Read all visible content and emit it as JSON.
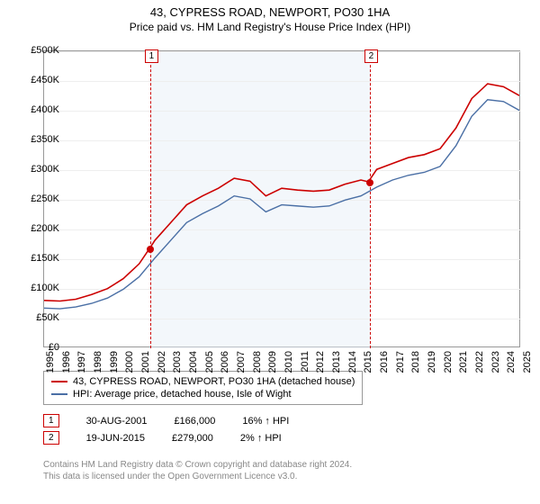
{
  "title": "43, CYPRESS ROAD, NEWPORT, PO30 1HA",
  "subtitle": "Price paid vs. HM Land Registry's House Price Index (HPI)",
  "chart": {
    "type": "line",
    "x_axis": {
      "min": 1995,
      "max": 2025,
      "tick_step": 1,
      "labels": [
        "1995",
        "1996",
        "1997",
        "1998",
        "1999",
        "2000",
        "2001",
        "2002",
        "2003",
        "2004",
        "2005",
        "2006",
        "2007",
        "2008",
        "2009",
        "2010",
        "2011",
        "2012",
        "2013",
        "2014",
        "2015",
        "2016",
        "2017",
        "2018",
        "2019",
        "2020",
        "2021",
        "2022",
        "2023",
        "2024",
        "2025"
      ]
    },
    "y_axis": {
      "min": 0,
      "max": 500,
      "tick_step": 50,
      "labels": [
        "£0",
        "£50K",
        "£100K",
        "£150K",
        "£200K",
        "£250K",
        "£300K",
        "£350K",
        "£400K",
        "£450K",
        "£500K"
      ]
    },
    "background_color": "#ffffff",
    "shade_color": "#e8f0f8",
    "grid_color": "#eeeeee",
    "border_color": "#999999",
    "shade_range": [
      2001.66,
      2015.47
    ],
    "series": [
      {
        "name": "property",
        "label": "43, CYPRESS ROAD, NEWPORT, PO30 1HA (detached house)",
        "color": "#cc0000",
        "line_width": 1.6,
        "data": [
          [
            1995,
            78
          ],
          [
            1996,
            77
          ],
          [
            1997,
            80
          ],
          [
            1998,
            88
          ],
          [
            1999,
            98
          ],
          [
            2000,
            115
          ],
          [
            2001,
            140
          ],
          [
            2001.66,
            166
          ],
          [
            2002,
            180
          ],
          [
            2003,
            210
          ],
          [
            2004,
            240
          ],
          [
            2005,
            255
          ],
          [
            2006,
            268
          ],
          [
            2007,
            285
          ],
          [
            2008,
            280
          ],
          [
            2009,
            255
          ],
          [
            2010,
            268
          ],
          [
            2011,
            265
          ],
          [
            2012,
            263
          ],
          [
            2013,
            265
          ],
          [
            2014,
            275
          ],
          [
            2015,
            282
          ],
          [
            2015.47,
            279
          ],
          [
            2016,
            300
          ],
          [
            2017,
            310
          ],
          [
            2018,
            320
          ],
          [
            2019,
            325
          ],
          [
            2020,
            335
          ],
          [
            2021,
            370
          ],
          [
            2022,
            420
          ],
          [
            2023,
            445
          ],
          [
            2024,
            440
          ],
          [
            2025,
            425
          ]
        ]
      },
      {
        "name": "hpi",
        "label": "HPI: Average price, detached house, Isle of Wight",
        "color": "#4a6fa5",
        "line_width": 1.4,
        "data": [
          [
            1995,
            65
          ],
          [
            1996,
            64
          ],
          [
            1997,
            67
          ],
          [
            1998,
            73
          ],
          [
            1999,
            82
          ],
          [
            2000,
            97
          ],
          [
            2001,
            118
          ],
          [
            2002,
            150
          ],
          [
            2003,
            180
          ],
          [
            2004,
            210
          ],
          [
            2005,
            225
          ],
          [
            2006,
            238
          ],
          [
            2007,
            255
          ],
          [
            2008,
            250
          ],
          [
            2009,
            228
          ],
          [
            2010,
            240
          ],
          [
            2011,
            238
          ],
          [
            2012,
            236
          ],
          [
            2013,
            238
          ],
          [
            2014,
            248
          ],
          [
            2015,
            255
          ],
          [
            2016,
            270
          ],
          [
            2017,
            282
          ],
          [
            2018,
            290
          ],
          [
            2019,
            295
          ],
          [
            2020,
            305
          ],
          [
            2021,
            340
          ],
          [
            2022,
            390
          ],
          [
            2023,
            418
          ],
          [
            2024,
            415
          ],
          [
            2025,
            400
          ]
        ]
      }
    ],
    "markers": [
      {
        "id": "1",
        "x": 2001.66,
        "y": 166
      },
      {
        "id": "2",
        "x": 2015.47,
        "y": 279
      }
    ]
  },
  "legend": {
    "items": [
      {
        "color": "#cc0000",
        "label": "43, CYPRESS ROAD, NEWPORT, PO30 1HA (detached house)"
      },
      {
        "color": "#4a6fa5",
        "label": "HPI: Average price, detached house, Isle of Wight"
      }
    ]
  },
  "sales": [
    {
      "id": "1",
      "date": "30-AUG-2001",
      "price": "£166,000",
      "delta": "16% ↑ HPI"
    },
    {
      "id": "2",
      "date": "19-JUN-2015",
      "price": "£279,000",
      "delta": "2% ↑ HPI"
    }
  ],
  "footer": {
    "line1": "Contains HM Land Registry data © Crown copyright and database right 2024.",
    "line2": "This data is licensed under the Open Government Licence v3.0."
  }
}
